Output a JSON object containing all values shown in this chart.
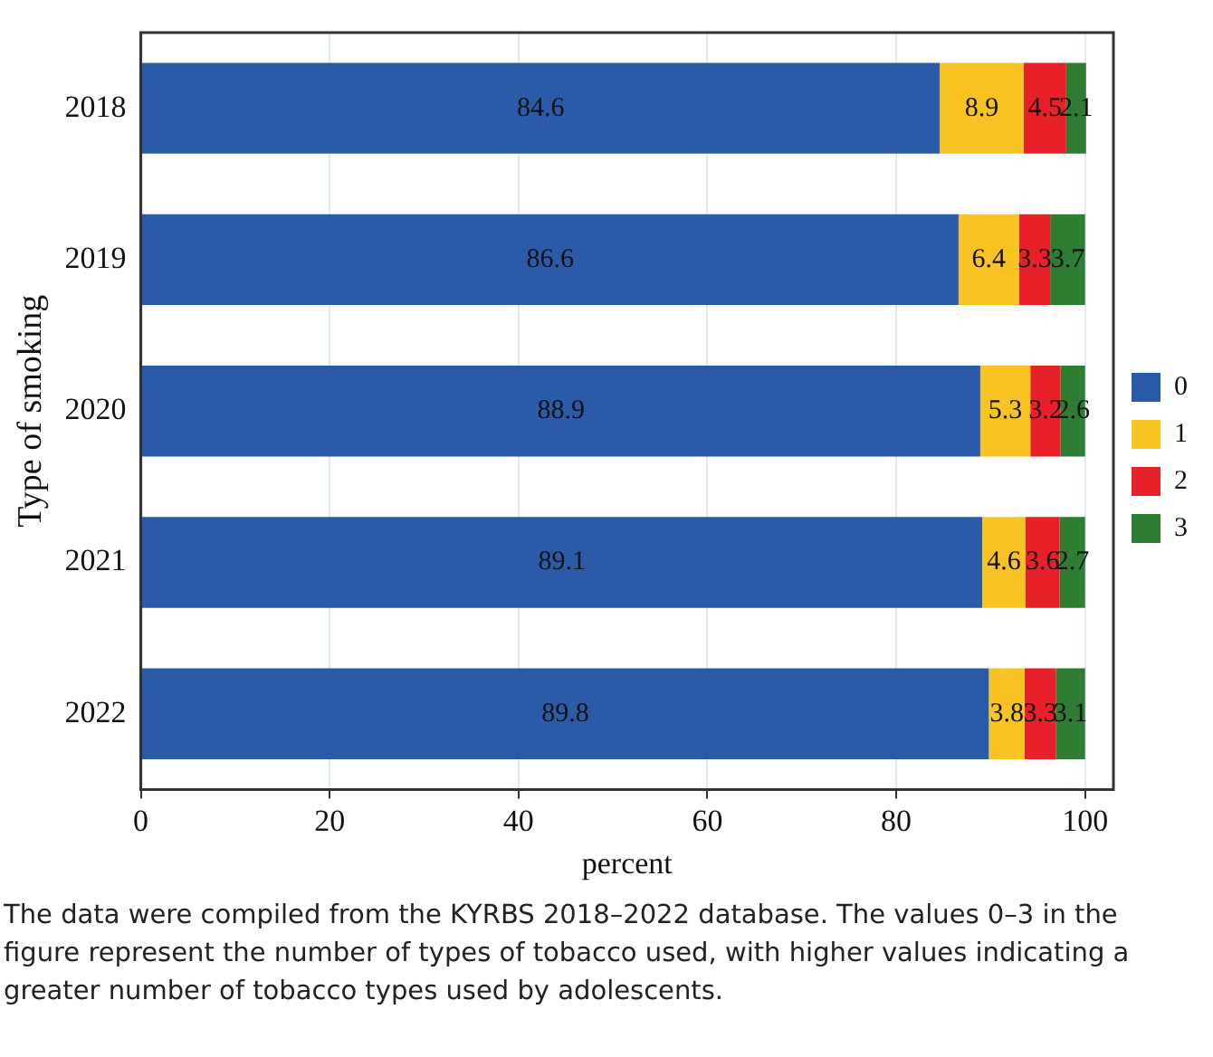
{
  "chart_data": {
    "type": "bar",
    "orientation": "horizontal",
    "stacked": true,
    "xlabel": "percent",
    "ylabel": "Type of smoking",
    "categories": [
      "2018",
      "2019",
      "2020",
      "2021",
      "2022"
    ],
    "series": [
      {
        "name": "0",
        "color": "#2b5ba8",
        "values": [
          84.6,
          86.6,
          88.9,
          89.1,
          89.8
        ]
      },
      {
        "name": "1",
        "color": "#f9c423",
        "values": [
          8.9,
          6.4,
          5.3,
          4.6,
          3.8
        ]
      },
      {
        "name": "2",
        "color": "#e8202a",
        "values": [
          4.5,
          3.3,
          3.2,
          3.6,
          3.3
        ]
      },
      {
        "name": "3",
        "color": "#2e7d32",
        "values": [
          2.1,
          3.7,
          2.6,
          2.7,
          3.1
        ]
      }
    ],
    "xlim": [
      0,
      103
    ],
    "xticks": [
      0,
      20,
      40,
      60,
      80,
      100
    ],
    "grid": "x",
    "legend": "right",
    "data_labels": true,
    "annotations": [
      "The data were compiled from the KYRBS 2018–2022 database. The values 0–3 in the figure represent the number of types of tobacco used, with higher values indicating a greater number of tobacco types used by adolescents."
    ]
  }
}
